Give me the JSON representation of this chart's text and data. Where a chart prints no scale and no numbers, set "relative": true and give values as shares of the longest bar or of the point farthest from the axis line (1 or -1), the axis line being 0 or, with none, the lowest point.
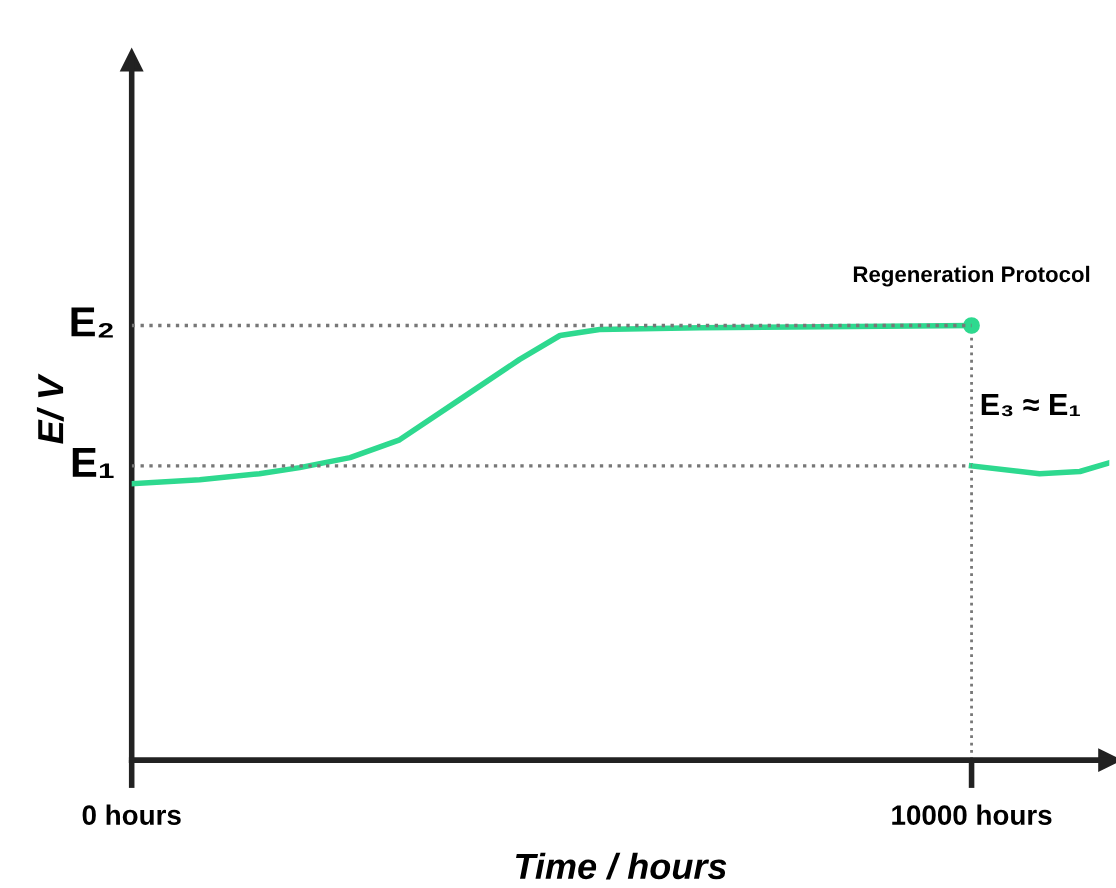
{
  "chart_data": {
    "type": "line",
    "relative": true,
    "xlabel": "Time / hours",
    "ylabel": "E/ V",
    "xlim": [
      0,
      11640
    ],
    "xticks": [
      {
        "value": 0,
        "label": "0 hours"
      },
      {
        "value": 10000,
        "label": "10000 hours"
      }
    ],
    "series": [
      {
        "color": "#2ed98f",
        "x": [
          0,
          810,
          1520,
          2000,
          2600,
          3190,
          3900,
          4620,
          5100,
          5570,
          6760,
          10000
        ],
        "values": [
          0.636,
          0.645,
          0.659,
          0.673,
          0.696,
          0.737,
          0.829,
          0.922,
          0.977,
          0.991,
          0.995,
          1.0
        ]
      },
      {
        "color": "#2ed98f",
        "x": [
          10000,
          10810,
          11290,
          11640
        ],
        "values": [
          0.677,
          0.659,
          0.664,
          0.684
        ]
      }
    ],
    "ref_lines": [
      {
        "axis": "y",
        "value": 1.0,
        "label": "E₂",
        "color": "#777777",
        "line_style": "dotted"
      },
      {
        "axis": "y",
        "value": 0.677,
        "label": "E₁",
        "color": "#777777",
        "line_style": "dotted"
      },
      {
        "axis": "x",
        "value": 10000,
        "color": "#777777",
        "line_style": "dotted"
      }
    ],
    "annotations": [
      {
        "text": "Regeneration Protocol",
        "x": 10000,
        "y": 1.0
      },
      {
        "text": "E₃ ≈ E₁",
        "x": 10700,
        "y": 0.677
      }
    ],
    "grid": false,
    "legend": false
  }
}
